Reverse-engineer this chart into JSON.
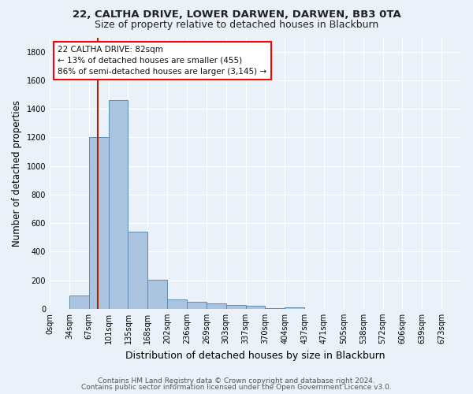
{
  "title1": "22, CALTHA DRIVE, LOWER DARWEN, DARWEN, BB3 0TA",
  "title2": "Size of property relative to detached houses in Blackburn",
  "xlabel": "Distribution of detached houses by size in Blackburn",
  "ylabel": "Number of detached properties",
  "footer1": "Contains HM Land Registry data © Crown copyright and database right 2024.",
  "footer2": "Contains public sector information licensed under the Open Government Licence v3.0.",
  "annotation_title": "22 CALTHA DRIVE: 82sqm",
  "annotation_line1": "← 13% of detached houses are smaller (455)",
  "annotation_line2": "86% of semi-detached houses are larger (3,145) →",
  "bar_labels": [
    "0sqm",
    "34sqm",
    "67sqm",
    "101sqm",
    "135sqm",
    "168sqm",
    "202sqm",
    "236sqm",
    "269sqm",
    "303sqm",
    "337sqm",
    "370sqm",
    "404sqm",
    "437sqm",
    "471sqm",
    "505sqm",
    "538sqm",
    "572sqm",
    "606sqm",
    "639sqm",
    "673sqm"
  ],
  "bar_values": [
    0,
    90,
    1200,
    1460,
    540,
    205,
    65,
    50,
    40,
    27,
    22,
    5,
    12,
    0,
    0,
    0,
    0,
    0,
    0,
    0,
    0
  ],
  "bar_color": "#aac4e0",
  "bar_edgecolor": "#5b8db8",
  "vline_color": "#aa2200",
  "ylim": [
    0,
    1900
  ],
  "yticks": [
    0,
    200,
    400,
    600,
    800,
    1000,
    1200,
    1400,
    1600,
    1800
  ],
  "background_color": "#eaf1f8",
  "grid_color": "#ffffff",
  "title1_fontsize": 9.5,
  "title2_fontsize": 9.0,
  "ylabel_fontsize": 8.5,
  "xlabel_fontsize": 9.0,
  "tick_fontsize": 7.0,
  "ann_fontsize": 7.5,
  "footer_fontsize": 6.5
}
